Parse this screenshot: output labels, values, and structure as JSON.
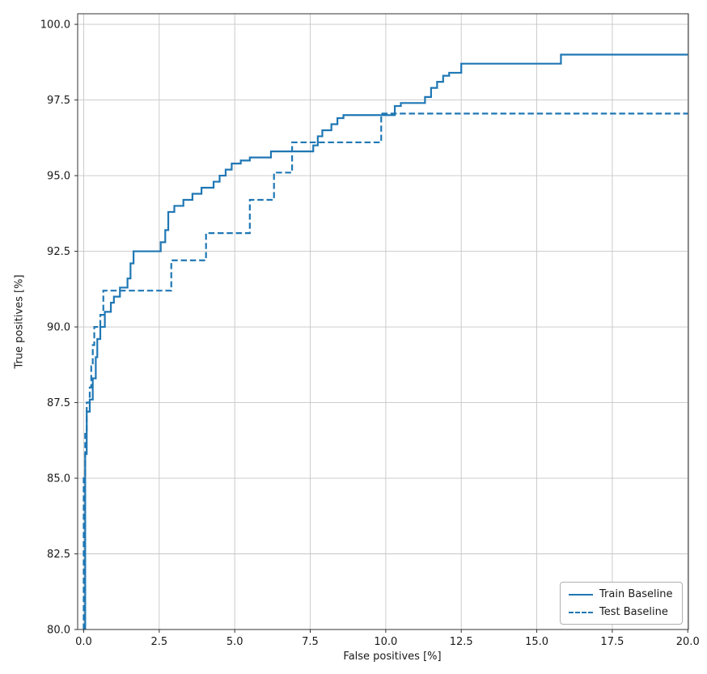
{
  "chart_data": {
    "type": "line",
    "title": "",
    "xlabel": "False positives [%]",
    "ylabel": "True positives [%]",
    "xlim": [
      -0.2,
      20.02
    ],
    "ylim": [
      80,
      100.35
    ],
    "grid": true,
    "legend_position": "lower right",
    "line_color": "#1f77b4",
    "grid_color": "#c6c6c6",
    "spine_color": "#333333",
    "tick_color": "#1a1a1a",
    "x_ticks": {
      "values": [
        0,
        2.5,
        5,
        7.5,
        10,
        12.5,
        15,
        17.5,
        20
      ],
      "labels": [
        "0.0",
        "2.5",
        "5.0",
        "7.5",
        "10.0",
        "12.5",
        "15.0",
        "17.5",
        "20.0"
      ]
    },
    "y_ticks": {
      "values": [
        80,
        82.5,
        85,
        87.5,
        90,
        92.5,
        95,
        97.5,
        100
      ],
      "labels": [
        "80.0",
        "82.5",
        "85.0",
        "87.5",
        "90.0",
        "92.5",
        "95.0",
        "97.5",
        "100.0"
      ]
    },
    "series": [
      {
        "name": "Train Baseline",
        "style": "solid",
        "points": [
          [
            0.05,
            80.0
          ],
          [
            0.05,
            85.8
          ],
          [
            0.1,
            85.8
          ],
          [
            0.1,
            87.2
          ],
          [
            0.2,
            87.2
          ],
          [
            0.2,
            87.6
          ],
          [
            0.3,
            87.6
          ],
          [
            0.3,
            88.3
          ],
          [
            0.4,
            88.3
          ],
          [
            0.4,
            89.0
          ],
          [
            0.45,
            89.0
          ],
          [
            0.45,
            89.6
          ],
          [
            0.55,
            89.6
          ],
          [
            0.55,
            90.0
          ],
          [
            0.7,
            90.0
          ],
          [
            0.7,
            90.5
          ],
          [
            0.9,
            90.5
          ],
          [
            0.9,
            90.8
          ],
          [
            1.0,
            90.8
          ],
          [
            1.0,
            91.0
          ],
          [
            1.2,
            91.0
          ],
          [
            1.2,
            91.3
          ],
          [
            1.45,
            91.3
          ],
          [
            1.45,
            91.6
          ],
          [
            1.55,
            91.6
          ],
          [
            1.55,
            92.1
          ],
          [
            1.65,
            92.1
          ],
          [
            1.65,
            92.5
          ],
          [
            2.55,
            92.5
          ],
          [
            2.55,
            92.8
          ],
          [
            2.7,
            92.8
          ],
          [
            2.7,
            93.2
          ],
          [
            2.8,
            93.2
          ],
          [
            2.8,
            93.8
          ],
          [
            3.0,
            93.8
          ],
          [
            3.0,
            94.0
          ],
          [
            3.3,
            94.0
          ],
          [
            3.3,
            94.2
          ],
          [
            3.6,
            94.2
          ],
          [
            3.6,
            94.4
          ],
          [
            3.9,
            94.4
          ],
          [
            3.9,
            94.6
          ],
          [
            4.3,
            94.6
          ],
          [
            4.3,
            94.8
          ],
          [
            4.5,
            94.8
          ],
          [
            4.5,
            95.0
          ],
          [
            4.7,
            95.0
          ],
          [
            4.7,
            95.2
          ],
          [
            4.9,
            95.2
          ],
          [
            4.9,
            95.4
          ],
          [
            5.2,
            95.4
          ],
          [
            5.2,
            95.5
          ],
          [
            5.5,
            95.5
          ],
          [
            5.5,
            95.6
          ],
          [
            6.2,
            95.6
          ],
          [
            6.2,
            95.8
          ],
          [
            7.6,
            95.8
          ],
          [
            7.6,
            96.0
          ],
          [
            7.75,
            96.0
          ],
          [
            7.75,
            96.3
          ],
          [
            7.9,
            96.3
          ],
          [
            7.9,
            96.5
          ],
          [
            8.2,
            96.5
          ],
          [
            8.2,
            96.7
          ],
          [
            8.4,
            96.7
          ],
          [
            8.4,
            96.9
          ],
          [
            8.6,
            96.9
          ],
          [
            8.6,
            97.0
          ],
          [
            10.3,
            97.0
          ],
          [
            10.3,
            97.3
          ],
          [
            10.5,
            97.3
          ],
          [
            10.5,
            97.4
          ],
          [
            11.3,
            97.4
          ],
          [
            11.3,
            97.6
          ],
          [
            11.5,
            97.6
          ],
          [
            11.5,
            97.9
          ],
          [
            11.7,
            97.9
          ],
          [
            11.7,
            98.1
          ],
          [
            11.9,
            98.1
          ],
          [
            11.9,
            98.3
          ],
          [
            12.1,
            98.3
          ],
          [
            12.1,
            98.4
          ],
          [
            12.5,
            98.4
          ],
          [
            12.5,
            98.7
          ],
          [
            15.8,
            98.7
          ],
          [
            15.8,
            99.0
          ],
          [
            20.0,
            99.0
          ]
        ]
      },
      {
        "name": "Test Baseline",
        "style": "dashed",
        "points": [
          [
            0.0,
            80.0
          ],
          [
            0.0,
            85.0
          ],
          [
            0.05,
            85.0
          ],
          [
            0.05,
            86.5
          ],
          [
            0.1,
            86.5
          ],
          [
            0.1,
            87.5
          ],
          [
            0.2,
            87.5
          ],
          [
            0.2,
            88.0
          ],
          [
            0.25,
            88.0
          ],
          [
            0.25,
            88.7
          ],
          [
            0.3,
            88.7
          ],
          [
            0.3,
            89.4
          ],
          [
            0.35,
            89.4
          ],
          [
            0.35,
            90.0
          ],
          [
            0.55,
            90.0
          ],
          [
            0.55,
            90.4
          ],
          [
            0.65,
            90.4
          ],
          [
            0.65,
            91.2
          ],
          [
            2.9,
            91.2
          ],
          [
            2.9,
            92.2
          ],
          [
            4.05,
            92.2
          ],
          [
            4.05,
            93.1
          ],
          [
            5.5,
            93.1
          ],
          [
            5.5,
            94.2
          ],
          [
            6.3,
            94.2
          ],
          [
            6.3,
            95.1
          ],
          [
            6.9,
            95.1
          ],
          [
            6.9,
            96.1
          ],
          [
            9.85,
            96.1
          ],
          [
            9.85,
            97.05
          ],
          [
            20.0,
            97.05
          ]
        ]
      }
    ]
  },
  "legend": {
    "items": [
      {
        "label": "Train Baseline"
      },
      {
        "label": "Test Baseline"
      }
    ]
  }
}
